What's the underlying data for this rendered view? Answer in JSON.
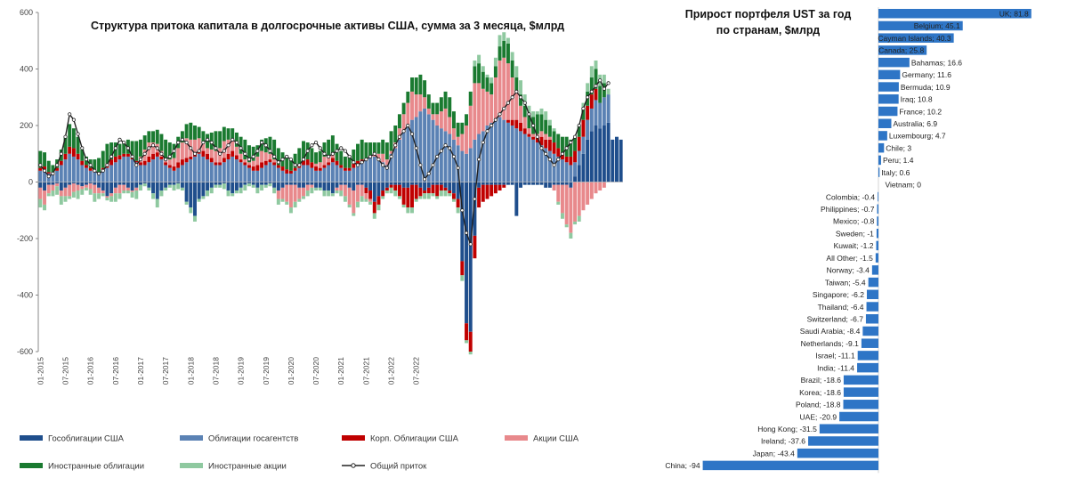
{
  "chart_data": [
    {
      "type": "bar",
      "stacked": true,
      "title": "Структура притока капитала в долгосрочные активы США, сумма за 3 месяца, $млрд",
      "ylim": [
        -600,
        600
      ],
      "yticks": [
        600,
        400,
        200,
        0,
        -200,
        -400,
        -600
      ],
      "xticks": [
        "01-2015",
        "07-2015",
        "01-2016",
        "07-2016",
        "01-2017",
        "07-2017",
        "01-2018",
        "07-2018",
        "01-2019",
        "07-2019",
        "01-2020",
        "07-2020",
        "01-2021",
        "07-2021",
        "01-2022",
        "07-2022"
      ],
      "x_start": "01-2015",
      "series": [
        {
          "name": "Гособлигации США",
          "color": "#1f4e8c",
          "values": [
            -20,
            -30,
            -10,
            -10,
            -5,
            -30,
            -20,
            -10,
            -5,
            -10,
            -15,
            -10,
            -5,
            -10,
            -20,
            -30,
            -50,
            -40,
            -20,
            -10,
            -10,
            -20,
            -30,
            -20,
            -10,
            -5,
            -20,
            -40,
            -60,
            -30,
            -20,
            -10,
            -10,
            -5,
            -20,
            -70,
            -90,
            -120,
            -60,
            -50,
            -30,
            -20,
            -10,
            -10,
            -5,
            -30,
            -40,
            -30,
            -20,
            -10,
            -5,
            -10,
            -20,
            -10,
            -10,
            -5,
            -20,
            -30,
            -20,
            -10,
            -10,
            -10,
            -20,
            -20,
            -10,
            -10,
            -20,
            -20,
            -30,
            -30,
            -40,
            -20,
            -10,
            -10,
            -20,
            -30,
            -10,
            -10,
            -20,
            -30,
            -70,
            -50,
            -30,
            -20,
            -10,
            -10,
            -10,
            -20,
            -20,
            -10,
            -10,
            -20,
            -30,
            -20,
            -10,
            -10,
            -10,
            -20,
            -30,
            -40,
            -60,
            -280,
            -500,
            -530,
            -190,
            -20,
            -10,
            -10,
            -10,
            -10,
            -10,
            -10,
            -10,
            -10,
            -120,
            -20,
            -10,
            -10,
            -10,
            -10,
            -10,
            -20,
            -20,
            -10,
            -10,
            -10,
            -10,
            -20,
            20,
            60,
            100,
            150,
            180,
            200,
            190,
            200,
            210,
            150,
            160,
            150
          ]
        },
        {
          "name": "Облигации госагентств",
          "color": "#5b82b4",
          "values": [
            40,
            45,
            30,
            25,
            40,
            60,
            80,
            100,
            90,
            80,
            60,
            50,
            40,
            35,
            30,
            40,
            50,
            60,
            70,
            80,
            90,
            90,
            80,
            70,
            60,
            60,
            70,
            80,
            90,
            80,
            60,
            50,
            40,
            50,
            60,
            70,
            80,
            90,
            100,
            90,
            80,
            70,
            60,
            60,
            70,
            80,
            90,
            80,
            70,
            60,
            50,
            40,
            40,
            50,
            60,
            70,
            60,
            50,
            40,
            30,
            30,
            40,
            50,
            60,
            60,
            50,
            40,
            40,
            50,
            60,
            70,
            60,
            50,
            40,
            40,
            50,
            60,
            70,
            80,
            90,
            90,
            80,
            70,
            60,
            100,
            120,
            150,
            180,
            200,
            220,
            230,
            250,
            260,
            240,
            220,
            200,
            190,
            180,
            170,
            150,
            130,
            110,
            100,
            120,
            150,
            170,
            180,
            200,
            210,
            220,
            230,
            220,
            210,
            200,
            190,
            180,
            170,
            160,
            150,
            140,
            130,
            120,
            110,
            100,
            90,
            80,
            70,
            60,
            50,
            50,
            60,
            70,
            80,
            90,
            90,
            100,
            100
          ]
        },
        {
          "name": "Корп. Облигации США",
          "color": "#c00000",
          "values": [
            10,
            10,
            5,
            5,
            10,
            15,
            20,
            25,
            30,
            20,
            15,
            10,
            10,
            5,
            5,
            10,
            15,
            20,
            20,
            15,
            10,
            10,
            5,
            5,
            10,
            15,
            20,
            20,
            15,
            10,
            10,
            10,
            15,
            20,
            20,
            15,
            10,
            10,
            15,
            20,
            20,
            15,
            10,
            10,
            15,
            20,
            20,
            15,
            10,
            10,
            10,
            15,
            20,
            20,
            15,
            10,
            10,
            10,
            15,
            15,
            10,
            10,
            10,
            15,
            20,
            20,
            15,
            10,
            10,
            10,
            15,
            15,
            10,
            10,
            10,
            15,
            15,
            10,
            -20,
            -30,
            -40,
            -30,
            -20,
            -10,
            -10,
            -20,
            -40,
            -60,
            -70,
            -80,
            -50,
            -30,
            -10,
            -20,
            -30,
            -40,
            -20,
            -10,
            -10,
            -20,
            -30,
            -50,
            -60,
            -70,
            -80,
            -70,
            -60,
            -50,
            -40,
            -30,
            -20,
            -10,
            10,
            20,
            30,
            30,
            20,
            10,
            10,
            20,
            30,
            30,
            40,
            40,
            30,
            20,
            20,
            30,
            40,
            50,
            60,
            50,
            50,
            40
          ]
        },
        {
          "name": "Акции США",
          "color": "#e8898c",
          "values": [
            -40,
            -50,
            -30,
            -20,
            -10,
            -20,
            -30,
            -40,
            -30,
            -20,
            -10,
            -10,
            -20,
            -30,
            -20,
            -10,
            -5,
            -10,
            -20,
            -30,
            -20,
            -10,
            -5,
            -10,
            20,
            40,
            50,
            40,
            30,
            20,
            10,
            20,
            30,
            50,
            60,
            70,
            60,
            50,
            40,
            30,
            20,
            30,
            40,
            50,
            60,
            50,
            40,
            30,
            20,
            10,
            10,
            20,
            30,
            40,
            30,
            20,
            10,
            -30,
            -40,
            -60,
            -80,
            -60,
            -40,
            -30,
            -20,
            -10,
            10,
            20,
            30,
            20,
            10,
            -10,
            -20,
            -40,
            -60,
            -80,
            -60,
            -40,
            -20,
            -10,
            10,
            20,
            30,
            20,
            10,
            20,
            40,
            60,
            80,
            100,
            80,
            60,
            40,
            20,
            20,
            40,
            60,
            80,
            60,
            40,
            30,
            60,
            100,
            150,
            200,
            180,
            150,
            120,
            100,
            150,
            200,
            220,
            200,
            150,
            100,
            60,
            40,
            20,
            10,
            10,
            20,
            20,
            10,
            -20,
            -60,
            -100,
            -140,
            -160,
            -140,
            -120,
            -100,
            -80,
            -60,
            -40,
            -30,
            -20
          ]
        },
        {
          "name": "Иностранные облигации",
          "color": "#1a7a30",
          "values": [
            60,
            50,
            40,
            30,
            30,
            40,
            60,
            80,
            70,
            60,
            40,
            30,
            30,
            40,
            50,
            60,
            70,
            60,
            50,
            40,
            40,
            50,
            60,
            70,
            60,
            50,
            40,
            40,
            50,
            60,
            70,
            60,
            50,
            40,
            40,
            50,
            60,
            50,
            40,
            40,
            50,
            60,
            70,
            60,
            50,
            40,
            40,
            50,
            60,
            70,
            60,
            50,
            40,
            40,
            50,
            60,
            70,
            60,
            50,
            40,
            40,
            50,
            60,
            70,
            60,
            50,
            40,
            40,
            50,
            60,
            70,
            60,
            50,
            40,
            40,
            50,
            60,
            70,
            60,
            50,
            40,
            40,
            50,
            60,
            70,
            60,
            50,
            40,
            40,
            50,
            60,
            70,
            60,
            50,
            40,
            40,
            50,
            60,
            70,
            60,
            50,
            40,
            40,
            50,
            60,
            70,
            60,
            50,
            40,
            40,
            50,
            60,
            70,
            60,
            50,
            40,
            40,
            50,
            60,
            70,
            60,
            50,
            40,
            40,
            50,
            60,
            70,
            60,
            50,
            40,
            40,
            50,
            60,
            70,
            60,
            50
          ]
        },
        {
          "name": "Иностранные акции",
          "color": "#8fc9a0",
          "values": [
            -30,
            -20,
            -10,
            -20,
            -30,
            -30,
            -20,
            -10,
            -20,
            -30,
            -20,
            -10,
            -20,
            -30,
            -20,
            -10,
            -10,
            -20,
            -30,
            -20,
            -10,
            -10,
            -20,
            -30,
            -20,
            -10,
            -10,
            -20,
            -30,
            -20,
            -10,
            -10,
            -20,
            -20,
            -10,
            -10,
            -20,
            -20,
            -10,
            -10,
            -20,
            -20,
            -10,
            -10,
            -20,
            -20,
            -10,
            -10,
            -20,
            -20,
            -10,
            -10,
            -20,
            -20,
            -10,
            -10,
            -20,
            -20,
            -10,
            -10,
            -20,
            -20,
            -10,
            -10,
            -20,
            -20,
            -10,
            -10,
            -20,
            -20,
            -10,
            -10,
            -20,
            -20,
            -10,
            -10,
            -20,
            -20,
            -10,
            -10,
            -20,
            -20,
            -10,
            -10,
            -20,
            -20,
            -10,
            -10,
            -20,
            -20,
            -10,
            -10,
            -20,
            -20,
            -10,
            -10,
            -20,
            -20,
            -10,
            -10,
            -20,
            -20,
            -10,
            -10,
            20,
            30,
            20,
            10,
            20,
            30,
            40,
            30,
            20,
            30,
            40,
            50,
            40,
            30,
            20,
            10,
            20,
            30,
            20,
            10,
            -10,
            -20,
            -10,
            -20,
            -10,
            -20,
            20,
            30,
            40,
            30,
            40,
            30,
            20
          ]
        },
        {
          "name": "Общий приток",
          "color": "#222222",
          "type": "line",
          "values": [
            60,
            40,
            20,
            30,
            60,
            100,
            160,
            240,
            220,
            170,
            120,
            80,
            60,
            40,
            30,
            40,
            60,
            90,
            120,
            150,
            140,
            120,
            90,
            60,
            80,
            100,
            120,
            130,
            120,
            100,
            80,
            90,
            110,
            140,
            150,
            140,
            120,
            100,
            110,
            140,
            150,
            140,
            120,
            100,
            110,
            130,
            150,
            140,
            120,
            100,
            80,
            90,
            110,
            140,
            130,
            110,
            90,
            70,
            80,
            90,
            80,
            60,
            60,
            80,
            110,
            130,
            140,
            120,
            100,
            90,
            100,
            110,
            120,
            110,
            90,
            70,
            60,
            70,
            80,
            90,
            100,
            80,
            60,
            50,
            90,
            130,
            160,
            180,
            200,
            170,
            120,
            60,
            10,
            30,
            60,
            90,
            110,
            130,
            120,
            90,
            50,
            -100,
            -180,
            -220,
            -60,
            80,
            140,
            180,
            200,
            220,
            240,
            260,
            280,
            300,
            320,
            300,
            280,
            240,
            200,
            160,
            120,
            100,
            80,
            60,
            80,
            100,
            120,
            140,
            160,
            200,
            260,
            300,
            320,
            340,
            360,
            330,
            350
          ]
        }
      ]
    },
    {
      "type": "bar",
      "orientation": "horizontal",
      "title": "Прирост портфеля UST за год по странам, $млрд",
      "title_lines": [
        "Прирост портфеля UST за год",
        "по странам, $млрд"
      ],
      "color": "#2e75c6",
      "categories": [
        "UK",
        "Belgium",
        "Cayman Islands",
        "Canada",
        "Bahamas",
        "Germany",
        "Bermuda",
        "Iraq",
        "France",
        "Australia",
        "Luxembourg",
        "Chile",
        "Peru",
        "Italy",
        "Vietnam",
        "Colombia",
        "Philippines",
        "Mexico",
        "Sweden",
        "Kuwait",
        "All Other",
        "Norway",
        "Taiwan",
        "Singapore",
        "Thailand",
        "Switzerland",
        "Saudi Arabia",
        "Netherlands",
        "Israel",
        "India",
        "Brazil",
        "Korea",
        "Poland",
        "UAE",
        "Hong Kong",
        "Ireland",
        "Japan",
        "China"
      ],
      "values": [
        81.8,
        45.1,
        40.3,
        25.8,
        16.6,
        11.6,
        10.9,
        10.8,
        10.2,
        6.9,
        4.7,
        3,
        1.4,
        0.6,
        0,
        -0.4,
        -0.7,
        -0.8,
        -1,
        -1.2,
        -1.5,
        -3.4,
        -5.4,
        -6.2,
        -6.4,
        -6.7,
        -8.4,
        -9.1,
        -11.1,
        -11.4,
        -18.6,
        -18.6,
        -18.8,
        -20.9,
        -31.5,
        -37.6,
        -43.4,
        -94
      ],
      "labels": [
        "UK; 81.8",
        "Belgium; 45.1",
        "Cayman Islands; 40.3",
        "Canada; 25.8",
        "Bahamas; 16.6",
        "Germany; 11.6",
        "Bermuda; 10.9",
        "Iraq; 10.8",
        "France; 10.2",
        "Australia; 6.9",
        "Luxembourg; 4.7",
        "Chile; 3",
        "Peru; 1.4",
        "Italy; 0.6",
        "Vietnam; 0",
        "Colombia; -0.4",
        "Philippines; -0.7",
        "Mexico; -0.8",
        "Sweden; -1",
        "Kuwait; -1.2",
        "All Other; -1.5",
        "Norway; -3.4",
        "Taiwan; -5.4",
        "Singapore; -6.2",
        "Thailand; -6.4",
        "Switzerland; -6.7",
        "Saudi Arabia; -8.4",
        "Netherlands; -9.1",
        "Israel; -11.1",
        "India; -11.4",
        "Brazil; -18.6",
        "Korea; -18.6",
        "Poland; -18.8",
        "UAE; -20.9",
        "Hong Kong; -31.5",
        "Ireland; -37.6",
        "Japan; -43.4",
        "China; -94"
      ]
    }
  ]
}
